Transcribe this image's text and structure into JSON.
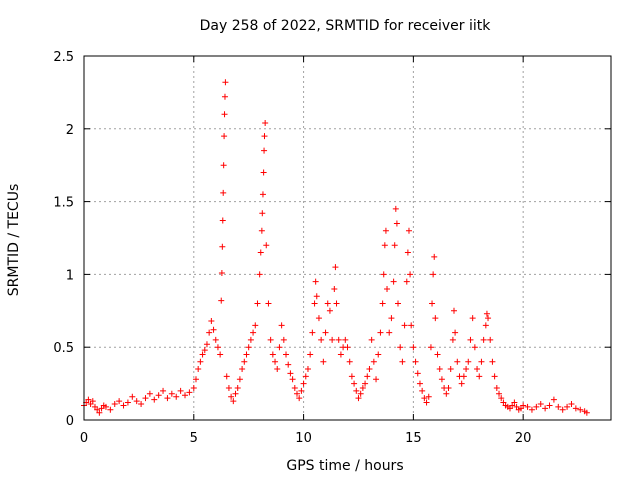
{
  "chart_data": {
    "type": "scatter",
    "title": "Day 258 of 2022, SRMTID for receiver iitk",
    "xlabel": "GPS time / hours",
    "ylabel": "SRMTID / TECUs",
    "xlim": [
      0,
      24
    ],
    "ylim": [
      0,
      2.5
    ],
    "xticks": [
      "0",
      "5",
      "10",
      "15",
      "20"
    ],
    "yticks": [
      "0",
      "0.5",
      "1",
      "1.5",
      "2",
      "2.5"
    ],
    "xtick_values": [
      0,
      5,
      10,
      15,
      20
    ],
    "ytick_values": [
      0,
      0.5,
      1,
      1.5,
      2,
      2.5
    ],
    "grid": true,
    "marker": "+",
    "color": "#ff0000",
    "series": [
      {
        "name": "SRMTID",
        "points": [
          [
            0.0,
            0.1
          ],
          [
            0.1,
            0.12
          ],
          [
            0.2,
            0.14
          ],
          [
            0.3,
            0.11
          ],
          [
            0.4,
            0.13
          ],
          [
            0.5,
            0.09
          ],
          [
            0.6,
            0.07
          ],
          [
            0.7,
            0.05
          ],
          [
            0.8,
            0.08
          ],
          [
            0.9,
            0.1
          ],
          [
            1.0,
            0.09
          ],
          [
            1.2,
            0.07
          ],
          [
            1.4,
            0.11
          ],
          [
            1.6,
            0.13
          ],
          [
            1.8,
            0.1
          ],
          [
            2.0,
            0.12
          ],
          [
            2.2,
            0.16
          ],
          [
            2.4,
            0.13
          ],
          [
            2.6,
            0.11
          ],
          [
            2.8,
            0.15
          ],
          [
            3.0,
            0.18
          ],
          [
            3.2,
            0.14
          ],
          [
            3.4,
            0.17
          ],
          [
            3.6,
            0.2
          ],
          [
            3.8,
            0.15
          ],
          [
            4.0,
            0.18
          ],
          [
            4.2,
            0.16
          ],
          [
            4.4,
            0.2
          ],
          [
            4.6,
            0.17
          ],
          [
            4.8,
            0.19
          ],
          [
            5.0,
            0.22
          ],
          [
            5.1,
            0.28
          ],
          [
            5.2,
            0.35
          ],
          [
            5.3,
            0.4
          ],
          [
            5.4,
            0.45
          ],
          [
            5.5,
            0.48
          ],
          [
            5.6,
            0.52
          ],
          [
            5.7,
            0.6
          ],
          [
            5.8,
            0.68
          ],
          [
            5.9,
            0.62
          ],
          [
            6.0,
            0.55
          ],
          [
            6.1,
            0.5
          ],
          [
            6.2,
            0.45
          ],
          [
            6.25,
            0.82
          ],
          [
            6.28,
            1.01
          ],
          [
            6.3,
            1.19
          ],
          [
            6.32,
            1.37
          ],
          [
            6.34,
            1.56
          ],
          [
            6.36,
            1.75
          ],
          [
            6.38,
            1.95
          ],
          [
            6.4,
            2.1
          ],
          [
            6.42,
            2.22
          ],
          [
            6.44,
            2.32
          ],
          [
            6.5,
            0.3
          ],
          [
            6.6,
            0.22
          ],
          [
            6.7,
            0.16
          ],
          [
            6.8,
            0.13
          ],
          [
            6.9,
            0.18
          ],
          [
            7.0,
            0.22
          ],
          [
            7.1,
            0.28
          ],
          [
            7.2,
            0.35
          ],
          [
            7.3,
            0.4
          ],
          [
            7.4,
            0.45
          ],
          [
            7.5,
            0.5
          ],
          [
            7.6,
            0.55
          ],
          [
            7.7,
            0.6
          ],
          [
            7.8,
            0.65
          ],
          [
            7.9,
            0.8
          ],
          [
            8.0,
            1.0
          ],
          [
            8.05,
            1.15
          ],
          [
            8.1,
            1.3
          ],
          [
            8.12,
            1.42
          ],
          [
            8.15,
            1.55
          ],
          [
            8.18,
            1.7
          ],
          [
            8.2,
            1.85
          ],
          [
            8.22,
            1.95
          ],
          [
            8.25,
            2.04
          ],
          [
            8.3,
            1.2
          ],
          [
            8.4,
            0.8
          ],
          [
            8.5,
            0.55
          ],
          [
            8.6,
            0.45
          ],
          [
            8.7,
            0.4
          ],
          [
            8.8,
            0.35
          ],
          [
            8.9,
            0.5
          ],
          [
            9.0,
            0.65
          ],
          [
            9.1,
            0.55
          ],
          [
            9.2,
            0.45
          ],
          [
            9.3,
            0.38
          ],
          [
            9.4,
            0.32
          ],
          [
            9.5,
            0.28
          ],
          [
            9.6,
            0.22
          ],
          [
            9.7,
            0.18
          ],
          [
            9.8,
            0.15
          ],
          [
            9.9,
            0.2
          ],
          [
            10.0,
            0.25
          ],
          [
            10.1,
            0.3
          ],
          [
            10.2,
            0.35
          ],
          [
            10.3,
            0.45
          ],
          [
            10.4,
            0.6
          ],
          [
            10.5,
            0.8
          ],
          [
            10.55,
            0.95
          ],
          [
            10.6,
            0.85
          ],
          [
            10.7,
            0.7
          ],
          [
            10.8,
            0.55
          ],
          [
            10.9,
            0.4
          ],
          [
            11.0,
            0.6
          ],
          [
            11.1,
            0.8
          ],
          [
            11.2,
            0.75
          ],
          [
            11.3,
            0.55
          ],
          [
            11.4,
            0.9
          ],
          [
            11.45,
            1.05
          ],
          [
            11.5,
            0.8
          ],
          [
            11.6,
            0.55
          ],
          [
            11.7,
            0.45
          ],
          [
            11.8,
            0.5
          ],
          [
            11.9,
            0.55
          ],
          [
            12.0,
            0.5
          ],
          [
            12.1,
            0.4
          ],
          [
            12.2,
            0.3
          ],
          [
            12.3,
            0.25
          ],
          [
            12.4,
            0.2
          ],
          [
            12.5,
            0.15
          ],
          [
            12.6,
            0.18
          ],
          [
            12.7,
            0.22
          ],
          [
            12.8,
            0.25
          ],
          [
            12.9,
            0.3
          ],
          [
            13.0,
            0.35
          ],
          [
            13.1,
            0.55
          ],
          [
            13.2,
            0.4
          ],
          [
            13.3,
            0.28
          ],
          [
            13.4,
            0.45
          ],
          [
            13.5,
            0.6
          ],
          [
            13.6,
            0.8
          ],
          [
            13.65,
            1.0
          ],
          [
            13.7,
            1.2
          ],
          [
            13.75,
            1.3
          ],
          [
            13.8,
            0.9
          ],
          [
            13.9,
            0.6
          ],
          [
            14.0,
            0.7
          ],
          [
            14.1,
            0.95
          ],
          [
            14.15,
            1.2
          ],
          [
            14.2,
            1.45
          ],
          [
            14.25,
            1.35
          ],
          [
            14.3,
            0.8
          ],
          [
            14.4,
            0.5
          ],
          [
            14.5,
            0.4
          ],
          [
            14.6,
            0.65
          ],
          [
            14.7,
            0.95
          ],
          [
            14.75,
            1.15
          ],
          [
            14.8,
            1.3
          ],
          [
            14.85,
            1.0
          ],
          [
            14.9,
            0.65
          ],
          [
            15.0,
            0.5
          ],
          [
            15.1,
            0.4
          ],
          [
            15.2,
            0.32
          ],
          [
            15.3,
            0.25
          ],
          [
            15.4,
            0.2
          ],
          [
            15.5,
            0.15
          ],
          [
            15.6,
            0.12
          ],
          [
            15.7,
            0.16
          ],
          [
            15.8,
            0.5
          ],
          [
            15.85,
            0.8
          ],
          [
            15.9,
            1.0
          ],
          [
            15.95,
            1.12
          ],
          [
            16.0,
            0.7
          ],
          [
            16.1,
            0.45
          ],
          [
            16.2,
            0.35
          ],
          [
            16.3,
            0.28
          ],
          [
            16.4,
            0.22
          ],
          [
            16.5,
            0.18
          ],
          [
            16.6,
            0.22
          ],
          [
            16.7,
            0.35
          ],
          [
            16.8,
            0.55
          ],
          [
            16.85,
            0.75
          ],
          [
            16.9,
            0.6
          ],
          [
            17.0,
            0.4
          ],
          [
            17.1,
            0.3
          ],
          [
            17.2,
            0.25
          ],
          [
            17.3,
            0.3
          ],
          [
            17.4,
            0.35
          ],
          [
            17.5,
            0.4
          ],
          [
            17.6,
            0.55
          ],
          [
            17.7,
            0.7
          ],
          [
            17.8,
            0.5
          ],
          [
            17.9,
            0.35
          ],
          [
            18.0,
            0.3
          ],
          [
            18.1,
            0.4
          ],
          [
            18.2,
            0.55
          ],
          [
            18.3,
            0.65
          ],
          [
            18.35,
            0.73
          ],
          [
            18.4,
            0.7
          ],
          [
            18.5,
            0.55
          ],
          [
            18.6,
            0.4
          ],
          [
            18.7,
            0.3
          ],
          [
            18.8,
            0.22
          ],
          [
            18.9,
            0.18
          ],
          [
            19.0,
            0.15
          ],
          [
            19.1,
            0.12
          ],
          [
            19.2,
            0.1
          ],
          [
            19.3,
            0.09
          ],
          [
            19.4,
            0.08
          ],
          [
            19.5,
            0.1
          ],
          [
            19.6,
            0.12
          ],
          [
            19.7,
            0.09
          ],
          [
            19.8,
            0.07
          ],
          [
            19.9,
            0.08
          ],
          [
            20.0,
            0.1
          ],
          [
            20.2,
            0.09
          ],
          [
            20.4,
            0.07
          ],
          [
            20.6,
            0.09
          ],
          [
            20.8,
            0.11
          ],
          [
            21.0,
            0.08
          ],
          [
            21.2,
            0.1
          ],
          [
            21.4,
            0.14
          ],
          [
            21.6,
            0.09
          ],
          [
            21.8,
            0.07
          ],
          [
            22.0,
            0.09
          ],
          [
            22.2,
            0.11
          ],
          [
            22.4,
            0.08
          ],
          [
            22.6,
            0.07
          ],
          [
            22.8,
            0.06
          ],
          [
            22.9,
            0.05
          ]
        ]
      }
    ]
  }
}
